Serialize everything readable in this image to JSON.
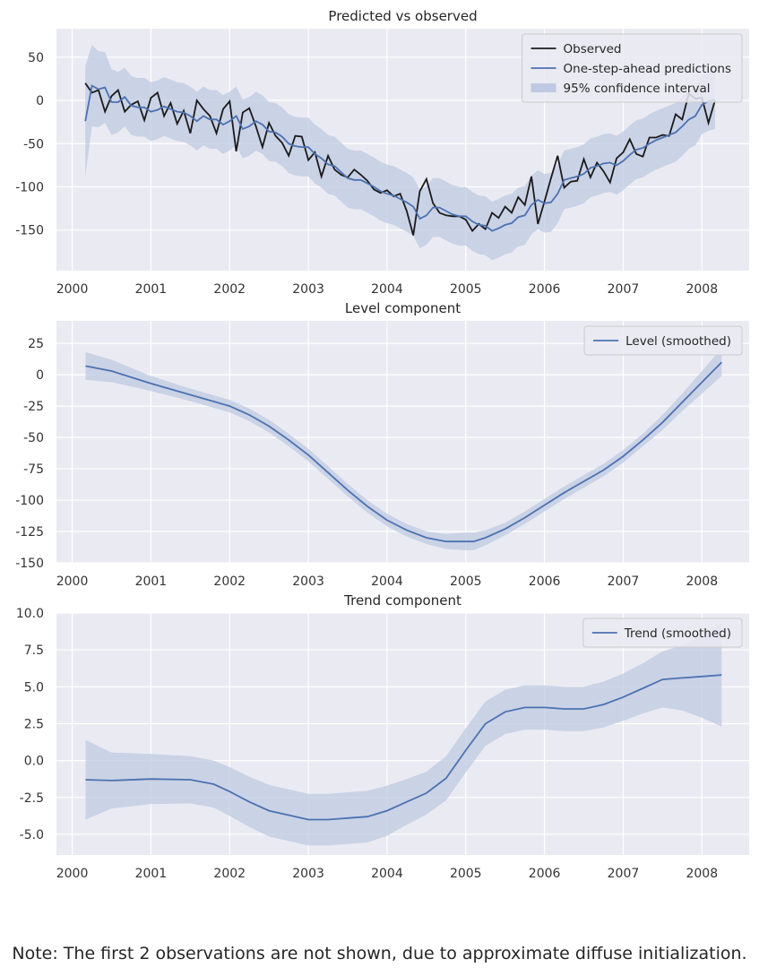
{
  "note": "Note: The first 2 observations are not shown, due to approximate diffuse initialization.",
  "colors": {
    "panel_bg": "#EAEAF2",
    "grid": "#FFFFFF",
    "observed": "#1A1A1A",
    "prediction": "#4C72B0",
    "band": "#BFC9E2"
  },
  "chart_data": [
    {
      "type": "line",
      "title": "Predicted vs observed",
      "xlim": [
        1999.8,
        2008.6
      ],
      "ylim": [
        -197,
        83
      ],
      "xticks": [
        "2000",
        "2001",
        "2002",
        "2003",
        "2004",
        "2005",
        "2006",
        "2007",
        "2008"
      ],
      "yticks": [
        "50",
        "0",
        "-50",
        "-100",
        "-150"
      ],
      "ytick_values": [
        50,
        0,
        -50,
        -100,
        -150
      ],
      "legend_position": "top-right",
      "x_start": 2000.167,
      "x_step": 0.08333,
      "series": [
        {
          "name": "Observed",
          "values": [
            20,
            9,
            12,
            -13,
            5,
            12,
            -13,
            -5,
            -1,
            -23,
            3,
            9,
            -18,
            -3,
            -27,
            -12,
            -38,
            0,
            -10,
            -18,
            -38,
            -10,
            -1,
            -59,
            -14,
            -9,
            -30,
            -54,
            -26,
            -41,
            -49,
            -64,
            -41,
            -42,
            -69,
            -60,
            -88,
            -64,
            -80,
            -86,
            -89,
            -80,
            -86,
            -93,
            -103,
            -107,
            -104,
            -111,
            -108,
            -128,
            -156,
            -105,
            -91,
            -119,
            -130,
            -133,
            -134,
            -134,
            -138,
            -151,
            -143,
            -149,
            -130,
            -136,
            -123,
            -130,
            -112,
            -121,
            -88,
            -143,
            -117,
            -90,
            -64,
            -101,
            -94,
            -93,
            -68,
            -89,
            -72,
            -82,
            -95,
            -67,
            -60,
            -45,
            -62,
            -65,
            -43,
            -43,
            -40,
            -41,
            -16,
            -22,
            8,
            2,
            3,
            -26,
            0
          ]
        },
        {
          "name": "One-step-ahead predictions",
          "values": [
            -24,
            17,
            13,
            15,
            -2,
            -2,
            4,
            -6,
            -8,
            -8,
            -13,
            -11,
            -7,
            -10,
            -13,
            -14,
            -18,
            -24,
            -18,
            -22,
            -22,
            -28,
            -24,
            -18,
            -33,
            -30,
            -24,
            -28,
            -36,
            -37,
            -42,
            -50,
            -53,
            -54,
            -54,
            -62,
            -67,
            -74,
            -76,
            -83,
            -90,
            -92,
            -92,
            -96,
            -100,
            -105,
            -108,
            -110,
            -114,
            -118,
            -123,
            -137,
            -133,
            -124,
            -124,
            -128,
            -132,
            -134,
            -134,
            -140,
            -144,
            -145,
            -151,
            -148,
            -144,
            -142,
            -135,
            -133,
            -121,
            -115,
            -119,
            -118,
            -108,
            -92,
            -90,
            -88,
            -85,
            -78,
            -76,
            -73,
            -72,
            -75,
            -70,
            -63,
            -57,
            -55,
            -50,
            -46,
            -43,
            -40,
            -37,
            -30,
            -22,
            -18,
            -5,
            -1,
            1
          ]
        },
        {
          "name": "95% confidence interval",
          "role": "band",
          "half_width": 34
        }
      ]
    },
    {
      "type": "line",
      "title": "Level component",
      "xlim": [
        1999.8,
        2008.6
      ],
      "ylim": [
        -150,
        43
      ],
      "xticks": [
        "2000",
        "2001",
        "2002",
        "2003",
        "2004",
        "2005",
        "2006",
        "2007",
        "2008"
      ],
      "yticks": [
        "25",
        "0",
        "-25",
        "-50",
        "-75",
        "-100",
        "-125",
        "-150"
      ],
      "ytick_values": [
        25,
        0,
        -25,
        -50,
        -75,
        -100,
        -125,
        -150
      ],
      "legend_position": "top-right",
      "x": [
        2000.17,
        2000.5,
        2001.0,
        2001.5,
        2002.0,
        2002.25,
        2002.5,
        2002.75,
        2003.0,
        2003.25,
        2003.5,
        2003.75,
        2004.0,
        2004.25,
        2004.5,
        2004.75,
        2005.0,
        2005.1,
        2005.25,
        2005.5,
        2005.75,
        2006.0,
        2006.25,
        2006.5,
        2006.75,
        2007.0,
        2007.25,
        2007.5,
        2007.75,
        2008.0,
        2008.25
      ],
      "series": [
        {
          "name": "Level (smoothed)",
          "values": [
            7,
            3,
            -7,
            -16,
            -25,
            -32,
            -41,
            -52,
            -64,
            -78,
            -92,
            -105,
            -116,
            -124,
            -130,
            -133,
            -133,
            -133,
            -130,
            -123,
            -114,
            -104,
            -94,
            -85,
            -76,
            -65,
            -52,
            -38,
            -22,
            -6,
            10
          ],
          "band_half_width": [
            11,
            9,
            6,
            5,
            5,
            5,
            5,
            5,
            5,
            5,
            5,
            5,
            5,
            5,
            5,
            6,
            7,
            7,
            6,
            5,
            5,
            5,
            5,
            5,
            5,
            5,
            5,
            6,
            7,
            9,
            11
          ]
        }
      ]
    },
    {
      "type": "line",
      "title": "Trend component",
      "xlim": [
        1999.8,
        2008.6
      ],
      "ylim": [
        -6.4,
        10.0
      ],
      "xticks": [
        "2000",
        "2001",
        "2002",
        "2003",
        "2004",
        "2005",
        "2006",
        "2007",
        "2008"
      ],
      "yticks": [
        "10.0",
        "7.5",
        "5.0",
        "2.5",
        "0.0",
        "-2.5",
        "-5.0"
      ],
      "ytick_values": [
        10.0,
        7.5,
        5.0,
        2.5,
        0.0,
        -2.5,
        -5.0
      ],
      "legend_position": "top-right",
      "x": [
        2000.17,
        2000.5,
        2001.0,
        2001.5,
        2001.8,
        2002.0,
        2002.25,
        2002.5,
        2002.75,
        2003.0,
        2003.25,
        2003.5,
        2003.75,
        2004.0,
        2004.25,
        2004.5,
        2004.75,
        2005.0,
        2005.25,
        2005.5,
        2005.75,
        2006.0,
        2006.25,
        2006.5,
        2006.75,
        2007.0,
        2007.25,
        2007.5,
        2007.75,
        2008.0,
        2008.25
      ],
      "series": [
        {
          "name": "Trend (smoothed)",
          "values": [
            -1.3,
            -1.35,
            -1.25,
            -1.3,
            -1.6,
            -2.1,
            -2.8,
            -3.4,
            -3.7,
            -4.0,
            -4.0,
            -3.9,
            -3.8,
            -3.4,
            -2.8,
            -2.2,
            -1.2,
            0.7,
            2.5,
            3.3,
            3.6,
            3.6,
            3.5,
            3.5,
            3.8,
            4.3,
            4.9,
            5.5,
            5.6,
            5.7,
            5.8
          ],
          "band_half_width": [
            2.7,
            1.9,
            1.7,
            1.6,
            1.6,
            1.65,
            1.7,
            1.75,
            1.75,
            1.75,
            1.75,
            1.75,
            1.75,
            1.7,
            1.55,
            1.45,
            1.5,
            1.5,
            1.5,
            1.5,
            1.5,
            1.5,
            1.5,
            1.5,
            1.55,
            1.6,
            1.7,
            1.9,
            2.2,
            2.8,
            3.5
          ]
        }
      ]
    }
  ]
}
